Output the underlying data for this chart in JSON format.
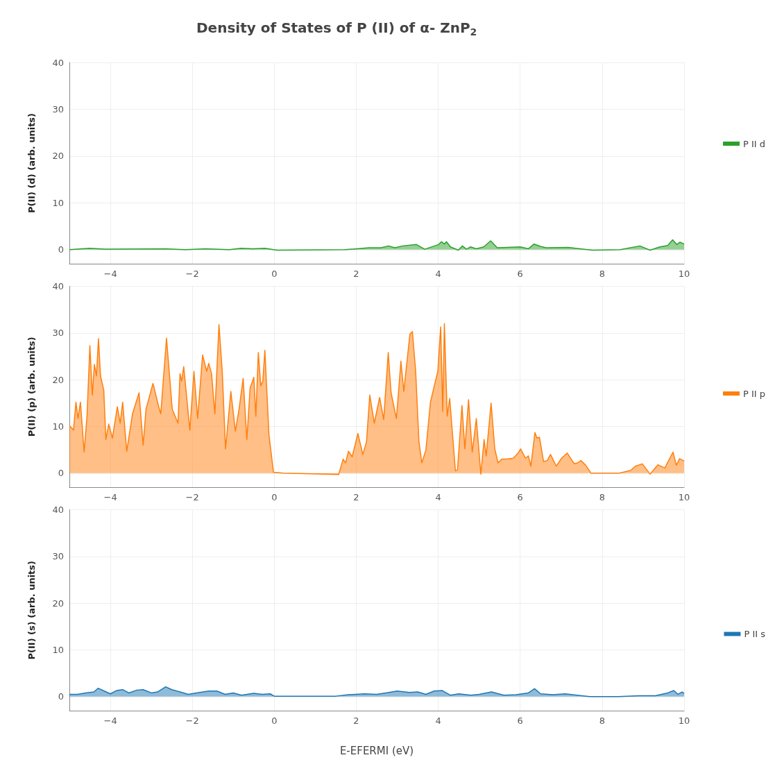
{
  "chart_data": [
    {
      "type": "area",
      "title": "Density of States of P (II) of α- ZnP$_{2}$",
      "ylabel": "P(II) (d) (arb. units)",
      "xlim": [
        -5,
        10
      ],
      "xticks": [
        -4,
        -2,
        0,
        2,
        4,
        6,
        8,
        10
      ],
      "ylim": [
        -3,
        40
      ],
      "yticks": [
        0,
        10,
        20,
        30,
        40
      ],
      "grid": true,
      "legend": "right",
      "x": [
        -5,
        -4.51,
        -4.12,
        -2.66,
        -2.17,
        -1.68,
        -1.1,
        -0.81,
        -0.52,
        -0.23,
        0.07,
        1.72,
        2.31,
        2.6,
        2.79,
        2.94,
        3.13,
        3.47,
        3.67,
        4.01,
        4.08,
        4.15,
        4.2,
        4.3,
        4.49,
        4.59,
        4.69,
        4.79,
        4.93,
        5.11,
        5.28,
        5.44,
        6,
        6.2,
        6.34,
        6.49,
        6.64,
        7.17,
        7.76,
        8.44,
        8.92,
        9.17,
        9.41,
        9.6,
        9.72,
        9.82,
        9.9,
        10
      ],
      "series": [
        {
          "name": "P II d",
          "color": "#2ca02c",
          "values": [
            0,
            0.3,
            0.1,
            0.2,
            0,
            0.2,
            0,
            0.3,
            0.2,
            0.3,
            -0.1,
            0,
            0.4,
            0.4,
            0.8,
            0.4,
            0.8,
            1.1,
            0.1,
            1.1,
            1.7,
            1.2,
            1.7,
            0.6,
            -0.1,
            0.8,
            0.1,
            0.6,
            0.2,
            0.6,
            1.9,
            0.4,
            0.6,
            0.2,
            1.2,
            0.7,
            0.4,
            0.5,
            -0.1,
            0,
            0.8,
            -0.1,
            0.6,
            0.9,
            2.1,
            1.1,
            1.6,
            1.2
          ]
        }
      ]
    },
    {
      "type": "area",
      "ylabel": "P(II) (p) (arb. units)",
      "xlim": [
        -5,
        10
      ],
      "xticks": [
        -4,
        -2,
        0,
        2,
        4,
        6,
        8,
        10
      ],
      "ylim": [
        -3,
        40
      ],
      "yticks": [
        0,
        10,
        20,
        30,
        40
      ],
      "grid": true,
      "legend": "right",
      "x": [
        -5,
        -4.9,
        -4.84,
        -4.79,
        -4.73,
        -4.64,
        -4.57,
        -4.5,
        -4.44,
        -4.39,
        -4.34,
        -4.29,
        -4.24,
        -4.16,
        -4.11,
        -4.04,
        -3.95,
        -3.83,
        -3.76,
        -3.7,
        -3.6,
        -3.46,
        -3.3,
        -3.2,
        -3.13,
        -2.96,
        -2.82,
        -2.77,
        -2.63,
        -2.49,
        -2.35,
        -2.3,
        -2.26,
        -2.21,
        -2.06,
        -1.96,
        -1.87,
        -1.75,
        -1.65,
        -1.6,
        -1.53,
        -1.45,
        -1.35,
        -1.27,
        -1.19,
        -1.06,
        -0.95,
        -0.86,
        -0.76,
        -0.67,
        -0.59,
        -0.5,
        -0.45,
        -0.39,
        -0.33,
        -0.28,
        -0.23,
        -0.13,
        -0.02,
        0.22,
        1.57,
        1.68,
        1.74,
        1.81,
        1.9,
        2.04,
        2.16,
        2.25,
        2.33,
        2.44,
        2.57,
        2.67,
        2.78,
        2.85,
        2.98,
        3.09,
        3.16,
        3.31,
        3.37,
        3.45,
        3.53,
        3.6,
        3.7,
        3.81,
        3.99,
        4.06,
        4.11,
        4.15,
        4.22,
        4.28,
        4.42,
        4.47,
        4.58,
        4.65,
        4.74,
        4.83,
        4.93,
        5.04,
        5.12,
        5.17,
        5.29,
        5.38,
        5.46,
        5.55,
        5.66,
        5.83,
        5.94,
        6.01,
        6.13,
        6.2,
        6.26,
        6.36,
        6.41,
        6.47,
        6.57,
        6.66,
        6.74,
        6.88,
        7.01,
        7.15,
        7.32,
        7.4,
        7.48,
        7.6,
        7.73,
        8.42,
        8.7,
        8.81,
        8.98,
        9.17,
        9.36,
        9.53,
        9.64,
        9.73,
        9.81,
        9.89,
        10
      ],
      "series": [
        {
          "name": "P II p",
          "color": "#ff7f0e",
          "values": [
            10.2,
            9.2,
            15.2,
            11.7,
            15.2,
            4.5,
            12.2,
            27.3,
            16.7,
            23.3,
            20.8,
            28.8,
            20.8,
            17.7,
            7.2,
            10.5,
            7.5,
            14.2,
            10.7,
            15.2,
            4.7,
            12.7,
            17.2,
            6,
            13.7,
            19.2,
            14.2,
            12.7,
            28.9,
            13.7,
            10.7,
            21.3,
            19.7,
            22.8,
            9.2,
            21.8,
            11.7,
            25.3,
            21.8,
            23.5,
            21.3,
            12.7,
            31.8,
            21.8,
            5.2,
            17.5,
            9,
            13.7,
            20.3,
            7.2,
            18.2,
            20.5,
            12.2,
            25.8,
            18.7,
            19.7,
            26.3,
            8.2,
            0.2,
            0,
            -0.3,
            3,
            2.2,
            4.7,
            3.5,
            8.5,
            4,
            6.7,
            16.7,
            10.7,
            16.2,
            11.5,
            25.8,
            17.2,
            11.7,
            24,
            17.5,
            29.8,
            30.3,
            21.8,
            6.7,
            2.2,
            5,
            15.2,
            21.8,
            31.3,
            13.2,
            32,
            12.2,
            16,
            0.5,
            0.7,
            14.5,
            5.2,
            15.7,
            4.5,
            11.7,
            -0.2,
            7.2,
            3.7,
            15,
            5.2,
            2.2,
            3,
            3,
            3.2,
            4.2,
            5.2,
            3.2,
            3.7,
            1.5,
            8.7,
            7.5,
            7.7,
            2.5,
            2.7,
            4,
            1.5,
            3.2,
            4.3,
            2,
            2.2,
            2.7,
            1.7,
            0,
            0,
            0.6,
            1.5,
            2,
            -0.2,
            1.8,
            1.1,
            3,
            4.5,
            1.7,
            3.1,
            2.6
          ]
        }
      ]
    },
    {
      "type": "area",
      "ylabel": "P(II) (s) (arb. units)",
      "xlabel": "E-EFERMI (eV)",
      "xlim": [
        -5,
        10
      ],
      "xticks": [
        -4,
        -2,
        0,
        2,
        4,
        6,
        8,
        10
      ],
      "ylim": [
        -3,
        40
      ],
      "yticks": [
        0,
        10,
        20,
        30,
        40
      ],
      "grid": true,
      "legend": "right",
      "x": [
        -5,
        -4.8,
        -4.6,
        -4.4,
        -4.3,
        -4.15,
        -4,
        -3.85,
        -3.7,
        -3.55,
        -3.35,
        -3.2,
        -3,
        -2.85,
        -2.65,
        -2.5,
        -2.3,
        -2.1,
        -1.9,
        -1.6,
        -1.4,
        -1.2,
        -1,
        -0.8,
        -0.5,
        -0.3,
        -0.1,
        0,
        1.5,
        1.8,
        2.2,
        2.5,
        2.8,
        3,
        3.3,
        3.5,
        3.7,
        3.9,
        4.1,
        4.3,
        4.5,
        4.8,
        5,
        5.3,
        5.6,
        5.9,
        6.2,
        6.35,
        6.5,
        6.8,
        7.1,
        7.5,
        7.7,
        8.4,
        8.9,
        9.3,
        9.6,
        9.75,
        9.85,
        9.95,
        10
      ],
      "series": [
        {
          "name": "P II s",
          "color": "#1f77b4",
          "values": [
            0.5,
            0.5,
            0.8,
            1,
            1.8,
            1.2,
            0.6,
            1.3,
            1.5,
            0.8,
            1.4,
            1.5,
            0.8,
            1,
            2.1,
            1.5,
            1,
            0.5,
            0.8,
            1.2,
            1.2,
            0.5,
            0.8,
            0.3,
            0.7,
            0.5,
            0.6,
            0.1,
            0.1,
            0.4,
            0.6,
            0.5,
            0.9,
            1.2,
            0.9,
            1,
            0.5,
            1.2,
            1.3,
            0.3,
            0.6,
            0.3,
            0.5,
            1,
            0.3,
            0.4,
            0.8,
            1.7,
            0.6,
            0.4,
            0.6,
            0.2,
            0,
            0,
            0.2,
            0.2,
            0.8,
            1.3,
            0.5,
            1,
            0.7
          ]
        }
      ]
    }
  ]
}
